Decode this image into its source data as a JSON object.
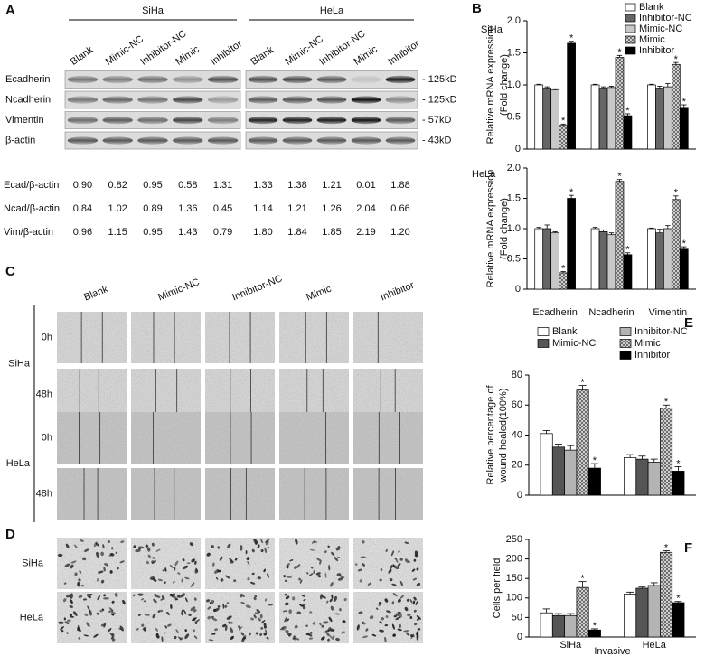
{
  "panel_a": {
    "label": "A",
    "groups": [
      {
        "name": "SiHa",
        "lanes": [
          "Blank",
          "Mimic-NC",
          "Inhibitor-NC",
          "Mimic",
          "Inhibitor"
        ]
      },
      {
        "name": "HeLa",
        "lanes": [
          "Blank",
          "Mimic-NC",
          "Inhibitor-NC",
          "Mimic",
          "Inhibitor"
        ]
      }
    ],
    "blots": [
      {
        "protein": "Ecadherin",
        "size": "- 125kD"
      },
      {
        "protein": "Ncadherin",
        "size": "- 125kD"
      },
      {
        "protein": "Vimentin",
        "size": "- 57kD"
      },
      {
        "protein": "β-actin",
        "size": "- 43kD"
      }
    ],
    "ratios": [
      {
        "label": "Ecad/β-actin",
        "values": [
          [
            "0.90",
            "0.82",
            "0.95",
            "0.58",
            "1.31"
          ],
          [
            "1.33",
            "1.38",
            "1.21",
            "0.01",
            "1.88"
          ]
        ]
      },
      {
        "label": "Ncad/β-actin",
        "values": [
          [
            "0.84",
            "1.02",
            "0.89",
            "1.36",
            "0.45"
          ],
          [
            "1.14",
            "1.21",
            "1.26",
            "2.04",
            "0.66"
          ]
        ]
      },
      {
        "label": "Vim/β-actin",
        "values": [
          [
            "0.96",
            "1.15",
            "0.95",
            "1.43",
            "0.79"
          ],
          [
            "1.80",
            "1.84",
            "1.85",
            "2.19",
            "1.20"
          ]
        ]
      }
    ]
  },
  "panel_c": {
    "label": "C",
    "columns": [
      "Blank",
      "Mimic-NC",
      "Inhibitor-NC",
      "Mimic",
      "Inhibitor"
    ],
    "cell_lines": [
      {
        "name": "SiHa",
        "times": [
          "0h",
          "48h"
        ]
      },
      {
        "name": "HeLa",
        "times": [
          "0h",
          "48h"
        ]
      }
    ]
  },
  "panel_d": {
    "label": "D",
    "cell_lines": [
      "SiHa",
      "HeLa"
    ]
  },
  "chart_data": [
    {
      "type": "bar",
      "panel_label": "B",
      "title": "SiHa",
      "y_label": [
        "Relative mRNA expression",
        "(Fold change)"
      ],
      "categories": [
        null,
        null,
        null
      ],
      "ylim": [
        0,
        2
      ],
      "yticks": [
        0,
        0.5,
        {
          "value": 1,
          "label": "1.0"
        },
        1.5,
        {
          "value": 2,
          "label": "2.0"
        }
      ],
      "legend": "top-right",
      "series": [
        {
          "name": "Blank",
          "color": "#ffffff",
          "values": [
            1.0,
            1.0,
            1.0
          ],
          "errors": [
            0.01,
            0.01,
            0.01
          ]
        },
        {
          "name": "Inhibitor-NC",
          "color": "#666666",
          "values": [
            0.95,
            0.95,
            0.95
          ],
          "errors": [
            0.02,
            0.02,
            0.03
          ]
        },
        {
          "name": "Mimic-NC",
          "color": "#c8c8c8",
          "values": [
            0.92,
            0.96,
            0.97
          ],
          "errors": [
            0.02,
            0.02,
            0.05
          ]
        },
        {
          "name": "Mimic",
          "color": "#aaaaaa",
          "pattern": "crosshatch",
          "values": [
            0.37,
            1.43,
            1.32
          ],
          "errors": [
            0.02,
            0.03,
            0.03
          ],
          "significance": [
            "*",
            "*",
            "*"
          ]
        },
        {
          "name": "Inhibitor",
          "color": "#000000",
          "values": [
            1.65,
            0.52,
            0.65
          ],
          "errors": [
            0.03,
            0.03,
            0.04
          ],
          "significance": [
            "*",
            "*",
            "*"
          ]
        }
      ]
    },
    {
      "type": "bar",
      "title": "HeLa",
      "y_label": [
        "Relative mRNA expression",
        "(Fold change)"
      ],
      "categories": [
        "Ecadherin",
        "Ncadherin",
        "Vimentin"
      ],
      "ylim": [
        0,
        2
      ],
      "yticks": [
        0,
        0.5,
        {
          "value": 1,
          "label": "1.0"
        },
        1.5,
        {
          "value": 2,
          "label": "2.0"
        }
      ],
      "legend": false,
      "series": [
        {
          "name": "Blank",
          "color": "#ffffff",
          "values": [
            1.0,
            1.0,
            1.0
          ],
          "errors": [
            0.02,
            0.02,
            0.01
          ]
        },
        {
          "name": "Inhibitor-NC",
          "color": "#666666",
          "values": [
            1.0,
            0.95,
            0.93
          ],
          "errors": [
            0.06,
            0.03,
            0.06
          ]
        },
        {
          "name": "Mimic-NC",
          "color": "#c8c8c8",
          "values": [
            0.93,
            0.9,
            1.0
          ],
          "errors": [
            0.02,
            0.03,
            0.05
          ]
        },
        {
          "name": "Mimic",
          "color": "#aaaaaa",
          "pattern": "crosshatch",
          "values": [
            0.27,
            1.78,
            1.48
          ],
          "errors": [
            0.02,
            0.03,
            0.06
          ],
          "significance": [
            "*",
            "*",
            "*"
          ]
        },
        {
          "name": "Inhibitor",
          "color": "#000000",
          "values": [
            1.5,
            0.57,
            0.66
          ],
          "errors": [
            0.05,
            0.03,
            0.04
          ],
          "significance": [
            "*",
            "*",
            "*"
          ]
        }
      ]
    },
    {
      "type": "bar",
      "panel_label": "E",
      "y_label": [
        "Relative percentage of",
        "wound healed(100%)"
      ],
      "categories": [
        null,
        null
      ],
      "ylim": [
        0,
        80
      ],
      "yticks": [
        0,
        20,
        40,
        60,
        80
      ],
      "legend": "top",
      "series": [
        {
          "name": "Blank",
          "color": "#ffffff",
          "values": [
            41,
            25
          ],
          "errors": [
            2,
            2
          ]
        },
        {
          "name": "Mimic-NC",
          "color": "#555555",
          "values": [
            32,
            24
          ],
          "errors": [
            2,
            2
          ]
        },
        {
          "name": "Inhibitor-NC",
          "color": "#b4b4b4",
          "values": [
            30,
            22
          ],
          "errors": [
            3,
            2
          ]
        },
        {
          "name": "Mimic",
          "color": "#aaaaaa",
          "pattern": "crosshatch",
          "values": [
            70,
            58
          ],
          "errors": [
            3,
            2
          ],
          "significance": [
            "*",
            "*"
          ]
        },
        {
          "name": "Inhibitor",
          "color": "#000000",
          "values": [
            18,
            16
          ],
          "errors": [
            3,
            3
          ],
          "significance": [
            "*",
            "*"
          ]
        }
      ]
    },
    {
      "type": "bar",
      "panel_label": "F",
      "y_label": [
        "Cells per field"
      ],
      "x_label": "Invasive",
      "categories": [
        "SiHa",
        "HeLa"
      ],
      "ylim": [
        0,
        250
      ],
      "yticks": [
        0,
        50,
        100,
        150,
        200,
        250
      ],
      "legend": false,
      "series": [
        {
          "name": "Blank",
          "color": "#ffffff",
          "values": [
            62,
            110
          ],
          "errors": [
            10,
            5
          ]
        },
        {
          "name": "Mimic-NC",
          "color": "#555555",
          "values": [
            55,
            125
          ],
          "errors": [
            5,
            3
          ]
        },
        {
          "name": "Inhibitor-NC",
          "color": "#b4b4b4",
          "values": [
            55,
            132
          ],
          "errors": [
            5,
            7
          ]
        },
        {
          "name": "Mimic",
          "color": "#aaaaaa",
          "pattern": "crosshatch",
          "values": [
            127,
            217
          ],
          "errors": [
            15,
            4
          ],
          "significance": [
            "*",
            "*"
          ]
        },
        {
          "name": "Inhibitor",
          "color": "#000000",
          "values": [
            18,
            88
          ],
          "errors": [
            3,
            3
          ],
          "significance": [
            "*",
            "*"
          ]
        }
      ]
    }
  ]
}
